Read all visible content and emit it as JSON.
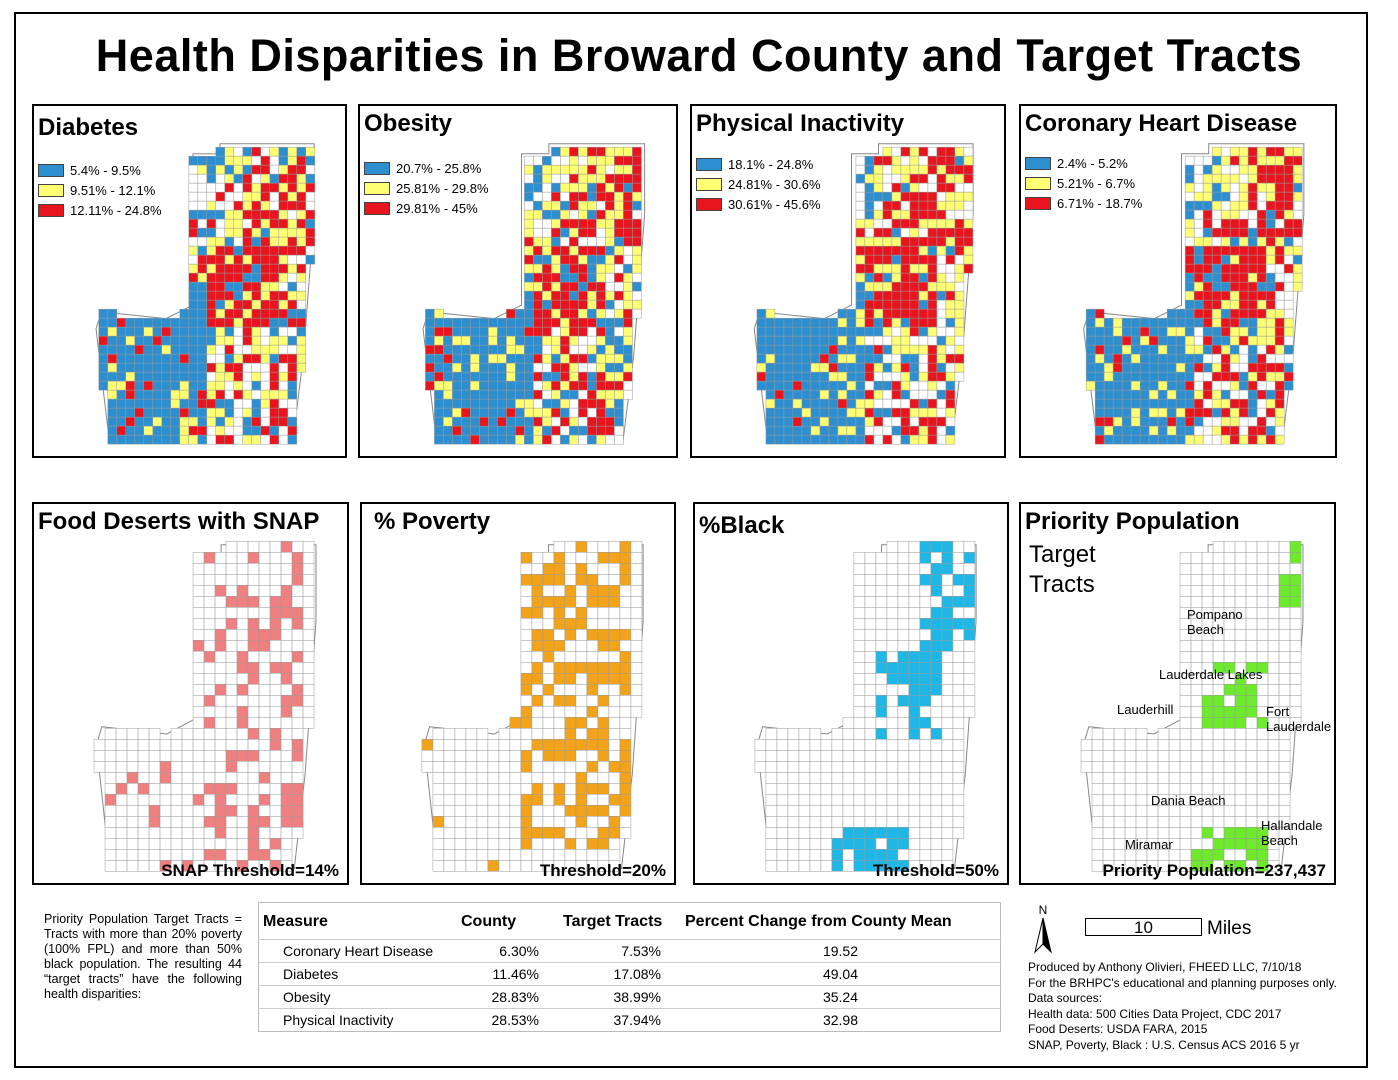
{
  "title": "Health Disparities in Broward County and Target Tracts",
  "colors": {
    "blue": "#2d8fcf",
    "yellow": "#ffff73",
    "red": "#e8141e",
    "salmon": "#f08080",
    "orange": "#f2a31a",
    "cyan": "#1fb8e6",
    "green": "#6dea2b"
  },
  "panels": {
    "diabetes": {
      "title": "Diabetes",
      "legend": [
        {
          "label": "5.4% - 9.5%",
          "color": "#2d8fcf"
        },
        {
          "label": "9.51% - 12.1%",
          "color": "#ffff73"
        },
        {
          "label": "12.11% - 24.8%",
          "color": "#e8141e"
        }
      ]
    },
    "obesity": {
      "title": "Obesity",
      "legend": [
        {
          "label": "20.7% - 25.8%",
          "color": "#2d8fcf"
        },
        {
          "label": "25.81% - 29.8%",
          "color": "#ffff73"
        },
        {
          "label": "29.81% - 45%",
          "color": "#e8141e"
        }
      ]
    },
    "inactivity": {
      "title": "Physical Inactivity",
      "legend": [
        {
          "label": "18.1% - 24.8%",
          "color": "#2d8fcf"
        },
        {
          "label": "24.81% - 30.6%",
          "color": "#ffff73"
        },
        {
          "label": "30.61% - 45.6%",
          "color": "#e8141e"
        }
      ]
    },
    "chd": {
      "title": "Coronary Heart Disease",
      "legend": [
        {
          "label": "2.4% - 5.2%",
          "color": "#2d8fcf"
        },
        {
          "label": "5.21% - 6.7%",
          "color": "#ffff73"
        },
        {
          "label": "6.71% - 18.7%",
          "color": "#e8141e"
        }
      ]
    },
    "food": {
      "title": "Food Deserts with SNAP",
      "footer": "SNAP Threshold=14%"
    },
    "poverty": {
      "title": "% Poverty",
      "footer": "Threshold=20%"
    },
    "black": {
      "title": "%Black",
      "footer": "Threshold=50%"
    },
    "priority": {
      "title": "Priority Population",
      "subtitle_1": "Target",
      "subtitle_2": "Tracts",
      "footer": "Priority Population=237,437",
      "places": {
        "pompano_1": "Pompano",
        "pompano_2": "Beach",
        "lakes": "Lauderdale Lakes",
        "lauderhill": "Lauderhill",
        "fortl_1": "Fort",
        "fortl_2": "Lauderdale",
        "dania": "Dania Beach",
        "hallandale_1": "Hallandale",
        "hallandale_2": "Beach",
        "miramar": "Miramar"
      }
    }
  },
  "note": "Priority Population Target Tracts = Tracts with more than 20% poverty (100% FPL) and more than 50% black population. The resulting 44 “target tracts” have the following health disparities:",
  "table": {
    "headers": [
      "Measure",
      "County",
      "Target Tracts",
      "Percent Change from County Mean"
    ],
    "rows": [
      {
        "measure": "Coronary Heart Disease",
        "county": "6.30%",
        "target": "7.53%",
        "change": "19.52"
      },
      {
        "measure": "Diabetes",
        "county": "11.46%",
        "target": "17.08%",
        "change": "49.04"
      },
      {
        "measure": "Obesity",
        "county": "28.83%",
        "target": "38.99%",
        "change": "35.24"
      },
      {
        "measure": "Physical Inactivity",
        "county": "28.53%",
        "target": "37.94%",
        "change": "32.98"
      }
    ]
  },
  "north_label": "N",
  "scale": {
    "value": "10",
    "unit": "Miles"
  },
  "credits": [
    "Produced by Anthony Olivieri, FHEED LLC, 7/10/18",
    "For the BRHPC's educational and planning purposes only.",
    "Data sources:",
    "Health data: 500 Cities Data Project, CDC 2017",
    "Food Deserts: USDA FARA, 2015",
    "SNAP, Poverty, Black : U.S. Census ACS 2016 5 yr"
  ]
}
